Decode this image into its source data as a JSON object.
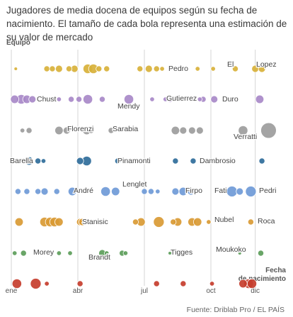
{
  "chart_data": {
    "type": "scatter",
    "title": "Jugadores de media docena de equipos según su fecha de nacimiento. El tamaño de cada bola representa una estimación de su valor de mercado",
    "ylabel": "Equipo",
    "xlabel": "Fecha de nacimiento",
    "x_ticks": [
      "ene",
      "abr",
      "jul",
      "oct",
      "dic"
    ],
    "x_tick_months": [
      0,
      3,
      6,
      9,
      11
    ],
    "xlim": [
      0,
      12
    ],
    "source": "Fuente: Driblab Pro / EL PAÍS",
    "grid": "vertical",
    "rows": [
      {
        "color": "#d8b13a",
        "points": [
          [
            0.2,
            1
          ],
          [
            1.6,
            3
          ],
          [
            1.85,
            3
          ],
          [
            2.15,
            4
          ],
          [
            2.6,
            3
          ],
          [
            2.85,
            4
          ],
          [
            3.45,
            6
          ],
          [
            3.7,
            6
          ],
          [
            3.95,
            3
          ],
          [
            4.3,
            3
          ],
          [
            5.8,
            3
          ],
          [
            6.2,
            4
          ],
          [
            6.55,
            3
          ],
          [
            6.8,
            2
          ],
          [
            8.4,
            2
          ],
          [
            9.1,
            2
          ],
          [
            10.1,
            3
          ],
          [
            11.0,
            4
          ],
          [
            11.3,
            4
          ]
        ]
      },
      {
        "color": "#a889c8",
        "points": [
          [
            0.15,
            5
          ],
          [
            0.45,
            6
          ],
          [
            0.7,
            5
          ],
          [
            0.95,
            4
          ],
          [
            2.15,
            2
          ],
          [
            2.7,
            3
          ],
          [
            3.05,
            3
          ],
          [
            3.45,
            6
          ],
          [
            4.1,
            3
          ],
          [
            5.3,
            6
          ],
          [
            6.35,
            2
          ],
          [
            6.95,
            2
          ],
          [
            7.15,
            3
          ],
          [
            8.5,
            2
          ],
          [
            8.65,
            3
          ],
          [
            9.15,
            4
          ],
          [
            10.0,
            2
          ],
          [
            11.2,
            5
          ]
        ]
      },
      {
        "color": "#9c9c9c",
        "points": [
          [
            0.5,
            2
          ],
          [
            0.8,
            3
          ],
          [
            2.15,
            5
          ],
          [
            2.5,
            4
          ],
          [
            3.4,
            5
          ],
          [
            3.6,
            3
          ],
          [
            4.5,
            3
          ],
          [
            7.4,
            5
          ],
          [
            7.75,
            4
          ],
          [
            8.15,
            4
          ],
          [
            8.5,
            4
          ],
          [
            10.45,
            6
          ],
          [
            11.6,
            11
          ]
        ]
      },
      {
        "color": "#2f6d9a",
        "points": [
          [
            0.8,
            5
          ],
          [
            1.2,
            3
          ],
          [
            1.45,
            2
          ],
          [
            3.1,
            4
          ],
          [
            3.4,
            6
          ],
          [
            4.8,
            3
          ],
          [
            7.4,
            3
          ],
          [
            8.2,
            3
          ],
          [
            9.7,
            2
          ],
          [
            11.3,
            3
          ]
        ]
      },
      {
        "color": "#6f9ad7",
        "points": [
          [
            0.3,
            3
          ],
          [
            0.7,
            3
          ],
          [
            1.2,
            3
          ],
          [
            1.5,
            4
          ],
          [
            2.05,
            3
          ],
          [
            2.75,
            5
          ],
          [
            4.25,
            6
          ],
          [
            4.7,
            5
          ],
          [
            6.0,
            3
          ],
          [
            6.3,
            3
          ],
          [
            6.6,
            2
          ],
          [
            7.4,
            4
          ],
          [
            7.75,
            5
          ],
          [
            8.1,
            4
          ],
          [
            9.95,
            7
          ],
          [
            10.3,
            4
          ],
          [
            10.8,
            7
          ]
        ]
      },
      {
        "color": "#d99a34",
        "points": [
          [
            0.35,
            5
          ],
          [
            1.5,
            6
          ],
          [
            1.75,
            6
          ],
          [
            1.95,
            6
          ],
          [
            2.15,
            5
          ],
          [
            3.1,
            4
          ],
          [
            3.2,
            4
          ],
          [
            5.6,
            3
          ],
          [
            5.85,
            5
          ],
          [
            6.65,
            7
          ],
          [
            7.3,
            3
          ],
          [
            7.5,
            5
          ],
          [
            8.15,
            5
          ],
          [
            8.4,
            5
          ],
          [
            8.9,
            2
          ],
          [
            10.8,
            3
          ]
        ]
      },
      {
        "color": "#5c9d5a",
        "points": [
          [
            0.15,
            2
          ],
          [
            0.55,
            3
          ],
          [
            2.15,
            2
          ],
          [
            2.65,
            2
          ],
          [
            4.1,
            4
          ],
          [
            4.3,
            2
          ],
          [
            5.0,
            3
          ],
          [
            5.15,
            2
          ],
          [
            7.15,
            1
          ],
          [
            11.25,
            3
          ],
          [
            10.3,
            1
          ]
        ]
      },
      {
        "color": "#c63d2d",
        "points": [
          [
            0.25,
            6
          ],
          [
            1.1,
            7
          ],
          [
            1.6,
            2
          ],
          [
            3.1,
            3
          ],
          [
            6.55,
            3
          ],
          [
            7.75,
            3
          ],
          [
            9.05,
            2
          ],
          [
            10.45,
            5
          ],
          [
            10.7,
            6
          ],
          [
            10.85,
            6
          ]
        ]
      }
    ],
    "annotations": [
      {
        "text": "Pedro",
        "row": 0
      },
      {
        "text": "El",
        "row": 0
      },
      {
        "text": "Lopez",
        "row": 0
      },
      {
        "text": "Chust",
        "row": 1
      },
      {
        "text": "Mendy",
        "row": 1
      },
      {
        "text": "Gutierrez",
        "row": 1
      },
      {
        "text": "Duro",
        "row": 1
      },
      {
        "text": "Florenzi",
        "row": 2
      },
      {
        "text": "Sarabia",
        "row": 2
      },
      {
        "text": "Verratti",
        "row": 2
      },
      {
        "text": "Barella",
        "row": 3
      },
      {
        "text": "Pinamonti",
        "row": 3
      },
      {
        "text": "Dambrosio",
        "row": 3
      },
      {
        "text": "Lenglet",
        "row": 4
      },
      {
        "text": "André",
        "row": 4
      },
      {
        "text": "Firpo",
        "row": 4
      },
      {
        "text": "Fati",
        "row": 4
      },
      {
        "text": "Pedri",
        "row": 4
      },
      {
        "text": "Stanisic",
        "row": 5
      },
      {
        "text": "Nubel",
        "row": 5
      },
      {
        "text": "Roca",
        "row": 5
      },
      {
        "text": "Morey",
        "row": 6
      },
      {
        "text": "Brandt",
        "row": 6
      },
      {
        "text": "Tigges",
        "row": 6
      },
      {
        "text": "Moukoko",
        "row": 6
      }
    ]
  }
}
